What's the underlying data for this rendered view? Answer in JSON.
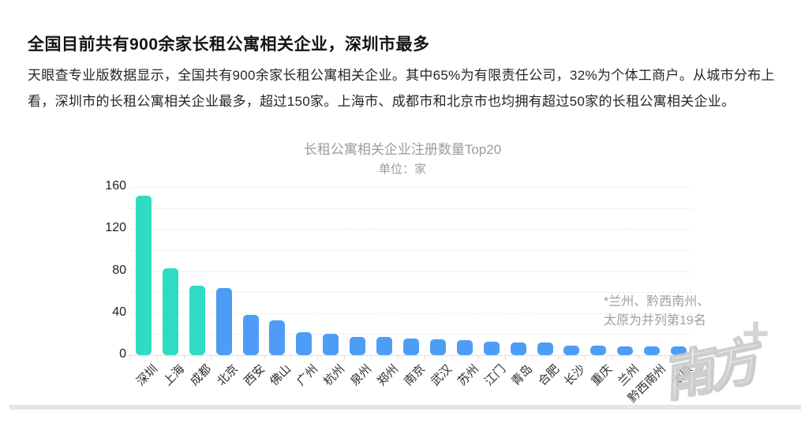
{
  "header": {
    "title": "全国目前共有900余家长租公寓相关企业，深圳市最多",
    "body": "天眼查专业版数据显示，全国共有900余家长租公寓相关企业。其中65%为有限责任公司，32%为个体工商户。从城市分布上看，深圳市的长租公寓相关企业最多，超过150家。上海市、成都市和北京市也均拥有超过50家的长租公寓相关企业。"
  },
  "chart_data": {
    "type": "bar",
    "title": "长租公寓相关企业注册数量Top20",
    "subtitle": "单位：家",
    "categories": [
      "深圳",
      "上海",
      "成都",
      "北京",
      "西安",
      "佛山",
      "广州",
      "杭州",
      "泉州",
      "郑州",
      "南京",
      "武汉",
      "苏州",
      "江门",
      "青岛",
      "合肥",
      "长沙",
      "重庆",
      "兰州",
      "黔西南州",
      "太原"
    ],
    "values": [
      152,
      83,
      66,
      64,
      38,
      33,
      22,
      20,
      17,
      17,
      16,
      15,
      14,
      13,
      12,
      12,
      9,
      9,
      8,
      8,
      8
    ],
    "xlabel": "",
    "ylabel": "",
    "ylim": [
      0,
      160
    ],
    "yticks": [
      0,
      40,
      80,
      120,
      160
    ],
    "grid": "horizontal dashed, every 20, legend off",
    "annotation": "*兰州、黔西南州、太原为并列第19名",
    "annotation_lines": [
      "*兰州、黔西南州、",
      "太原为并列第19名"
    ],
    "colors": {
      "highlight": "#2EDCC4",
      "default": "#4D9DF6"
    },
    "highlight_count": 3
  },
  "watermark": {
    "text": "南方",
    "plus": "+"
  }
}
